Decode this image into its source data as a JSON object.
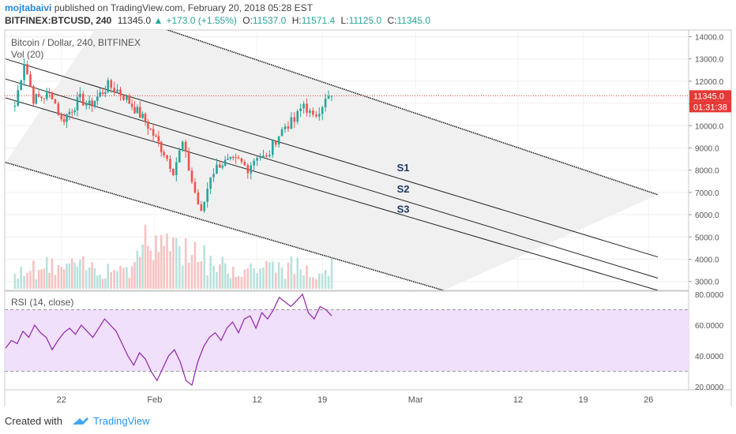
{
  "header": {
    "author": "mojtabaivi",
    "published_text": "published on TradingView.com, February 20, 2018 05:28 EST",
    "symbol": "BITFINEX:BTCUSD, 240",
    "last": "11345.0",
    "change": "+173.0 (+1.55%)",
    "o_label": "O:",
    "o": "11537.0",
    "h_label": "H:",
    "h": "11571.4",
    "l_label": "L:",
    "l": "11125.0",
    "c_label": "C:",
    "c": "11345.0"
  },
  "chart": {
    "title": "Bitcoin / Dollar, 240, BITFINEX",
    "volume_label": "Vol (20)",
    "rsi_label": "RSI (14, close)",
    "price_tag": "11345.0",
    "countdown_tag": "01:31:38",
    "colors": {
      "up": "#26a69a",
      "down": "#ef5350",
      "rsi": "#8e24aa",
      "rsi_band": "#f0e0fb",
      "price_line": "#e53935"
    }
  },
  "chart_data": [
    {
      "type": "candlestick",
      "title": "Bitcoin / Dollar, 240, BITFINEX",
      "y_ticks": [
        3000,
        4000,
        5000,
        6000,
        7000,
        8000,
        9000,
        10000,
        11000,
        12000,
        13000,
        14000
      ],
      "y_tick_labels": [
        "3000.0",
        "4000.0",
        "5000.0",
        "6000.0",
        "7000.0",
        "8000.0",
        "9000.0",
        "10000.0",
        "11000.0",
        "12000.0",
        "13000.0",
        "14000.0"
      ],
      "ylim": [
        2600,
        14300
      ],
      "x_tick_labels": [
        "22",
        "Feb",
        "12",
        "19",
        "Mar",
        "12",
        "19",
        "26"
      ],
      "last_price": 11345.0,
      "swing_points": [
        {
          "t": "Jan 17",
          "price": 10900
        },
        {
          "t": "Jan 18",
          "price": 12900
        },
        {
          "t": "Jan 19",
          "price": 11200
        },
        {
          "t": "Jan 21",
          "price": 11400
        },
        {
          "t": "Jan 22",
          "price": 10200
        },
        {
          "t": "Jan 24",
          "price": 11200
        },
        {
          "t": "Jan 25",
          "price": 10900
        },
        {
          "t": "Jan 27",
          "price": 11800
        },
        {
          "t": "Jan 28",
          "price": 11600
        },
        {
          "t": "Jan 29",
          "price": 11200
        },
        {
          "t": "Jan 31",
          "price": 10200
        },
        {
          "t": "Feb 2",
          "price": 8800
        },
        {
          "t": "Feb 3",
          "price": 8000
        },
        {
          "t": "Feb 4",
          "price": 9200
        },
        {
          "t": "Feb 5",
          "price": 7500
        },
        {
          "t": "Feb 6",
          "price": 6000
        },
        {
          "t": "Feb 7",
          "price": 7800
        },
        {
          "t": "Feb 8",
          "price": 8300
        },
        {
          "t": "Feb 10",
          "price": 8400
        },
        {
          "t": "Feb 11",
          "price": 8100
        },
        {
          "t": "Feb 12",
          "price": 8700
        },
        {
          "t": "Feb 13",
          "price": 8500
        },
        {
          "t": "Feb 14",
          "price": 9400
        },
        {
          "t": "Feb 15",
          "price": 10000
        },
        {
          "t": "Feb 16",
          "price": 10200
        },
        {
          "t": "Feb 17",
          "price": 11000
        },
        {
          "t": "Feb 18",
          "price": 10300
        },
        {
          "t": "Feb 19",
          "price": 11000
        },
        {
          "t": "Feb 20",
          "price": 11345
        }
      ],
      "annotations": [
        {
          "text": "S1",
          "price": 7950
        },
        {
          "text": "S2",
          "price": 7000
        },
        {
          "text": "S3",
          "price": 6100
        }
      ],
      "channel_lines": [
        {
          "name": "upper",
          "from": {
            "t": "Jan 27",
            "price": 15200
          },
          "to": {
            "t": "Mar 27",
            "price": 6900
          }
        },
        {
          "name": "S1",
          "from": {
            "t": "Jan 16",
            "price": 13000
          },
          "to": {
            "t": "Mar 27",
            "price": 4100
          }
        },
        {
          "name": "S2",
          "from": {
            "t": "Jan 16",
            "price": 12100
          },
          "to": {
            "t": "Mar 27",
            "price": 3150
          }
        },
        {
          "name": "S3",
          "from": {
            "t": "Jan 16",
            "price": 11250
          },
          "to": {
            "t": "Mar 27",
            "price": 2600
          }
        },
        {
          "name": "lower",
          "from": {
            "t": "Jan 16",
            "price": 8350
          },
          "to": {
            "t": "Mar 4",
            "price": 2600
          }
        }
      ]
    },
    {
      "type": "line",
      "title": "RSI (14, close)",
      "y_ticks": [
        20,
        40,
        60,
        80
      ],
      "y_tick_labels": [
        "20.0000",
        "40.0000",
        "60.0000",
        "80.0000"
      ],
      "ylim": [
        18,
        82
      ],
      "bands": [
        30,
        70
      ],
      "values": [
        45,
        50,
        48,
        56,
        52,
        60,
        55,
        52,
        44,
        50,
        55,
        58,
        54,
        60,
        56,
        52,
        58,
        64,
        60,
        56,
        48,
        40,
        34,
        42,
        38,
        30,
        24,
        32,
        40,
        44,
        36,
        24,
        21,
        36,
        46,
        52,
        55,
        50,
        58,
        62,
        55,
        64,
        66,
        58,
        68,
        64,
        70,
        78,
        75,
        72,
        76,
        80,
        68,
        64,
        72,
        70,
        66
      ]
    }
  ]
}
